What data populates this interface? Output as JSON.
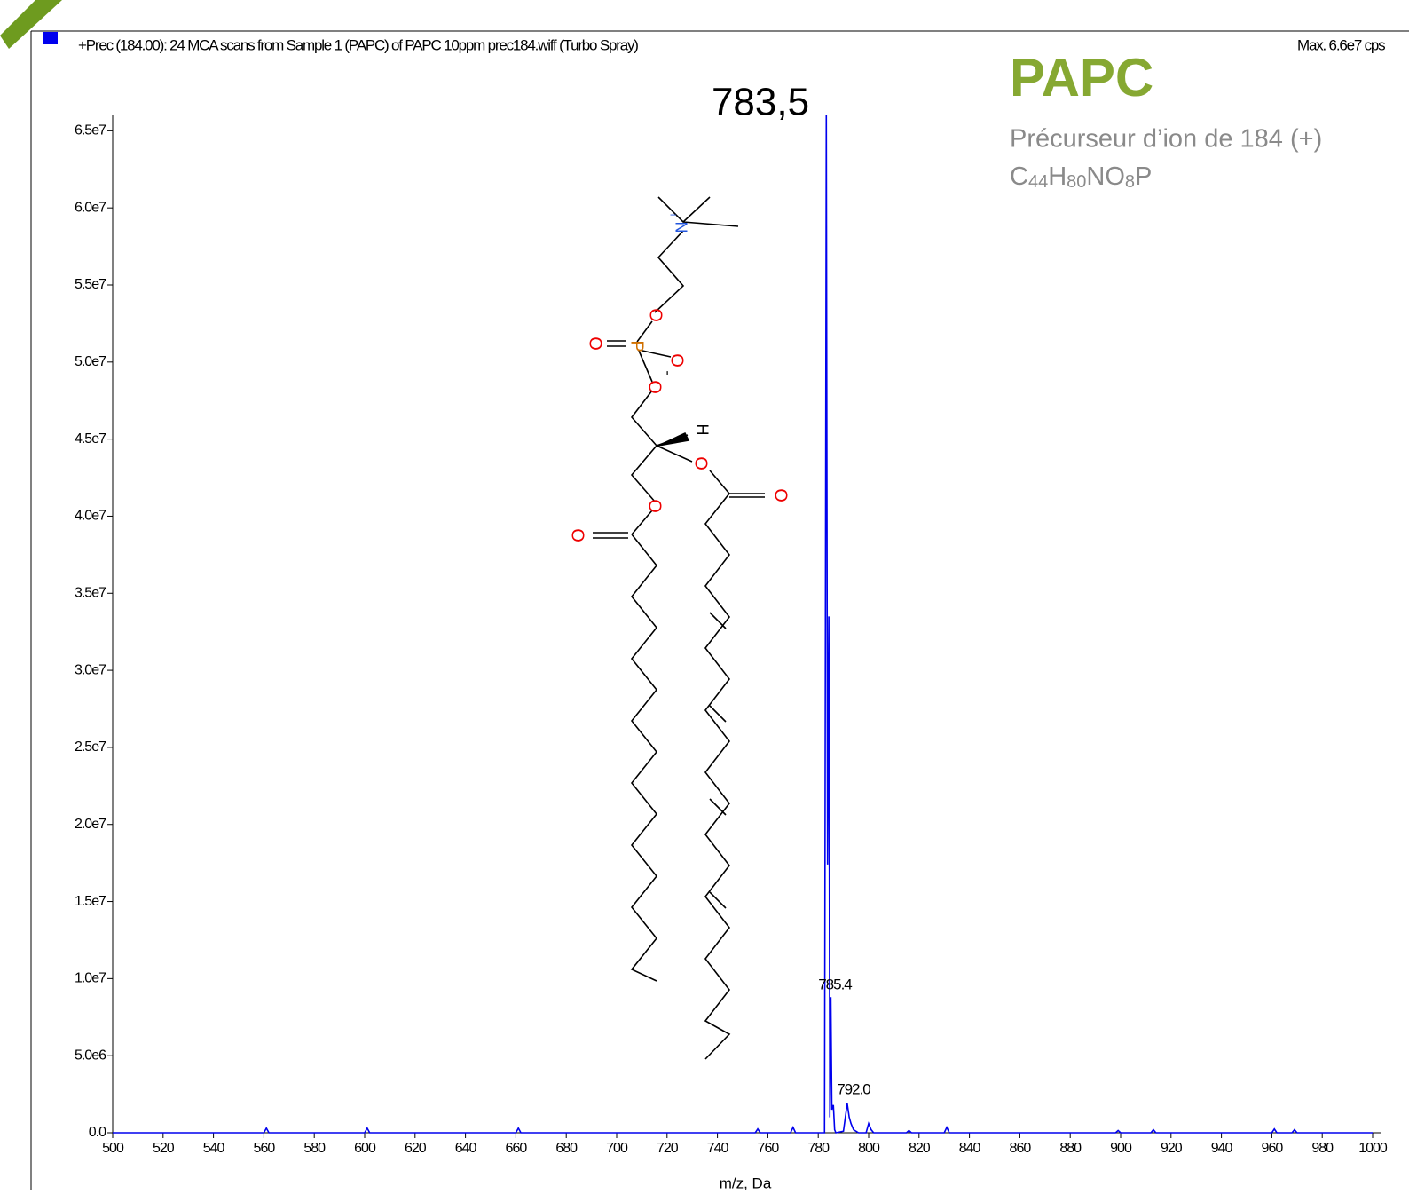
{
  "chart_data": {
    "type": "line",
    "header": "+Prec (184.00): 24 MCA scans from Sample 1 (PAPC) of PAPC 10ppm prec184.wiff (Turbo Spray)",
    "max_label": "Max. 6.6e7 cps",
    "title": "PAPC",
    "subtitle": "Précurseur d’ion  de 184 (+)",
    "formula": [
      [
        "C",
        ""
      ],
      [
        "44",
        "sub"
      ],
      [
        "H",
        ""
      ],
      [
        "80",
        "sub"
      ],
      [
        "NO",
        ""
      ],
      [
        "8",
        "sub"
      ],
      [
        "P",
        ""
      ]
    ],
    "x_label": "m/z, Da",
    "annotations": [
      "783,5",
      "785.4",
      "792.0"
    ],
    "atoms": [
      "N",
      "+",
      "O",
      "P",
      "O",
      "O",
      "-",
      "O",
      "H",
      "O",
      "O",
      "O",
      "O"
    ],
    "series": [
      {
        "name": "PAPC",
        "color": "#0000ee",
        "x": [
          500,
          560,
          561,
          562,
          600,
          601,
          602,
          620,
          660,
          661,
          662,
          755,
          756,
          757,
          769,
          770,
          771,
          782.5,
          783.2,
          783.7,
          784.2,
          784.6,
          785.0,
          785.4,
          786.0,
          786.5,
          787,
          790,
          791.5,
          792.3,
          793,
          794,
          796,
          799,
          800,
          801,
          802,
          815,
          816,
          817,
          830,
          831,
          832,
          898,
          899,
          900,
          912,
          913,
          914,
          960,
          961,
          962,
          968,
          969,
          970,
          1000
        ],
        "values": [
          0,
          0,
          300000,
          0,
          0,
          300000,
          0,
          0,
          0,
          300000,
          0,
          0,
          250000,
          0,
          0,
          350000,
          0,
          0,
          66000000,
          17400000,
          33500000,
          1000000,
          8800000,
          1500000,
          1800000,
          200000,
          0,
          100000,
          1900000,
          1000000,
          600000,
          200000,
          0,
          0,
          600000,
          200000,
          0,
          0,
          150000,
          0,
          0,
          350000,
          0,
          0,
          150000,
          0,
          0,
          200000,
          0,
          0,
          250000,
          0,
          0,
          200000,
          0,
          0
        ]
      }
    ],
    "xlim": [
      500,
      1000
    ],
    "xticks": [
      500,
      520,
      540,
      560,
      580,
      600,
      620,
      640,
      660,
      680,
      700,
      720,
      740,
      760,
      780,
      800,
      820,
      840,
      860,
      880,
      900,
      920,
      940,
      960,
      980,
      1000
    ],
    "ylim": [
      0,
      66000000
    ],
    "yticks": [
      {
        "value": 0,
        "label": "0.0"
      },
      {
        "value": 5000000,
        "label": "5.0e6"
      },
      {
        "value": 10000000,
        "label": "1.0e7"
      },
      {
        "value": 15000000,
        "label": "1.5e7"
      },
      {
        "value": 20000000,
        "label": "2.0e7"
      },
      {
        "value": 25000000,
        "label": "2.5e7"
      },
      {
        "value": 30000000,
        "label": "3.0e7"
      },
      {
        "value": 35000000,
        "label": "3.5e7"
      },
      {
        "value": 40000000,
        "label": "4.0e7"
      },
      {
        "value": 45000000,
        "label": "4.5e7"
      },
      {
        "value": 50000000,
        "label": "5.0e7"
      },
      {
        "value": 55000000,
        "label": "5.5e7"
      },
      {
        "value": 60000000,
        "label": "6.0e7"
      },
      {
        "value": 65000000,
        "label": "6.5e7"
      }
    ]
  }
}
